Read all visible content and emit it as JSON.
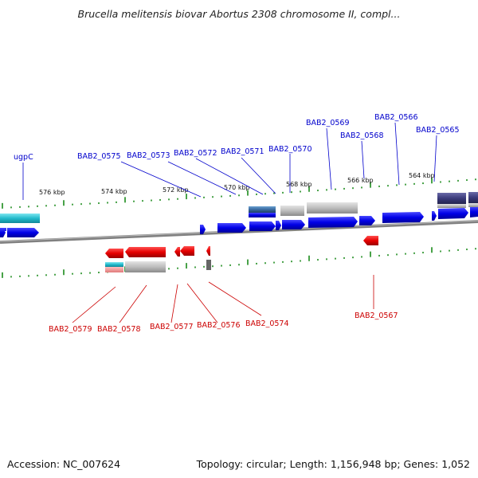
{
  "title": "Brucella melitensis biovar Abortus 2308 chromosome II, compl...",
  "footer": {
    "accession": "Accession: NC_007624",
    "topology": "Topology: circular; Length: 1,156,948 bp; Genes: 1,052"
  },
  "colors": {
    "forward_label": "#0000cc",
    "reverse_label": "#cc0000",
    "forward_feature": "#0000ee",
    "reverse_feature": "#ee0000",
    "tick": "#1a8a1a",
    "backbone": "#888888",
    "cyan_feature": "#22bbcc",
    "gray_feature": "#bbbbbb",
    "dark_purple_feature": "#3a3a7a",
    "steel_blue_feature": "#3a6aa0"
  },
  "scale_labels_upper": [
    "576 kbp",
    "574 kbp",
    "572 kbp",
    "570 kbp",
    "568 kbp",
    "566 kbp",
    "564 kbp"
  ],
  "forward_gene_labels": [
    "ugpC",
    "BAB2_0575",
    "BAB2_0573",
    "BAB2_0572",
    "BAB2_0571",
    "BAB2_0570",
    "BAB2_0569",
    "BAB2_0568",
    "BAB2_0566",
    "BAB2_0565"
  ],
  "reverse_gene_labels": [
    "BAB2_0579",
    "BAB2_0578",
    "BAB2_0577",
    "BAB2_0576",
    "BAB2_0574",
    "BAB2_0567"
  ]
}
